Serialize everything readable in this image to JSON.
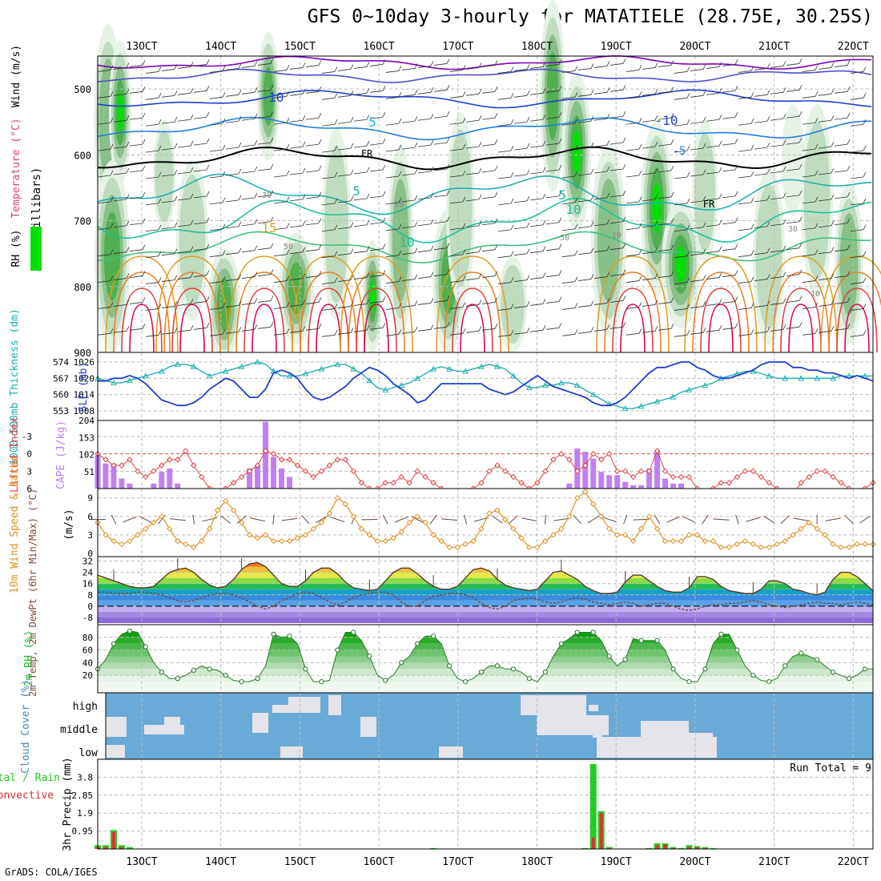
{
  "title": "GFS 0~10day 3-hourly for MATATIELE (28.75E, 30.25S)",
  "credit": "GrADS: COLA/IGES",
  "run_total": "Run Total = 9",
  "colors": {
    "rh_shades": [
      "#e6f2e6",
      "#c0dcc0",
      "#88c088",
      "#50b050",
      "#00e000"
    ],
    "temp_cold": "#7f00bf",
    "temp_cool": "#1f3fcf",
    "temp_freezing": "#000000",
    "temp_warm": "#e0a020",
    "temp_hot": "#e0004f",
    "slp": "#1f3fcf",
    "thickness": "#20b0b0",
    "cape": "#c07ff0",
    "lifted_index": "#e04040",
    "wind": "#e09020",
    "barbs": "#6a4a3a",
    "dewpt": "#7a4a3a",
    "rh2m": "#22bb22",
    "cloud_bg": "#6aaad6",
    "cloud_fill": "#e4e4ea",
    "precip_total": "#22cc22",
    "precip_conv": "#e03030"
  },
  "chart_data": [
    {
      "type": "heatmap",
      "panel": "upper-air",
      "ylabel": "(millibars)",
      "side_labels": [
        "RH (%)",
        "Temperature (°C)",
        "Wind (m/s)"
      ],
      "y_ticks": [
        "500",
        "600",
        "700",
        "800",
        "900"
      ],
      "ylim": [
        900,
        450
      ],
      "x_ticks": [
        "13OCT",
        "14OCT",
        "15OCT",
        "16OCT",
        "17OCT",
        "18OCT",
        "19OCT",
        "20OCT",
        "21OCT",
        "22OCT"
      ],
      "contour_labels": [
        "-10",
        "5",
        "-10",
        "FR",
        "FR",
        "5",
        "5",
        "10",
        "15",
        "10",
        "30",
        "10",
        "50",
        "-5",
        "10",
        "50",
        "10",
        "30"
      ]
    },
    {
      "type": "line",
      "panel": "slp-thickness",
      "ylabel_left": "1000-500mb Thickness (dm)",
      "ylabel_right": "SLP (mb)",
      "y_ticks_left": [
        "574",
        "567",
        "560",
        "553"
      ],
      "y_ticks_right": [
        "1026",
        "1020",
        "1014",
        "1008"
      ],
      "series": [
        {
          "name": "SLP (mb)",
          "values": [
            1019,
            1019,
            1020,
            1020,
            1021,
            1020,
            1018,
            1015,
            1012,
            1011,
            1010,
            1010,
            1011,
            1013,
            1016,
            1018,
            1020,
            1019,
            1016,
            1013,
            1013,
            1016,
            1022,
            1023,
            1022,
            1020,
            1016,
            1013,
            1012,
            1013,
            1015,
            1017,
            1020,
            1022,
            1024,
            1023,
            1021,
            1018,
            1016,
            1014,
            1011,
            1012,
            1015,
            1018,
            1018,
            1018,
            1018,
            1018,
            1018,
            1016,
            1015,
            1014,
            1015,
            1017,
            1019,
            1021,
            1019,
            1017,
            1016,
            1015,
            1014,
            1013,
            1011,
            1010,
            1010,
            1011,
            1013,
            1016,
            1019,
            1022,
            1024,
            1024,
            1025,
            1026,
            1026,
            1024,
            1023,
            1021,
            1020,
            1020,
            1021,
            1022,
            1023,
            1025,
            1026,
            1026,
            1026,
            1024,
            1024,
            1023,
            1023,
            1022,
            1022,
            1021,
            1020,
            1021,
            1020,
            1019
          ]
        },
        {
          "name": "Thickness (dm)",
          "values": [
            567,
            566,
            565,
            565,
            566,
            567,
            568,
            569,
            570,
            572,
            573,
            573,
            572,
            570,
            568,
            569,
            570,
            571,
            572,
            573,
            574,
            573,
            570,
            568,
            568,
            568,
            569,
            570,
            571,
            572,
            573,
            573,
            571,
            569,
            566,
            563,
            562,
            563,
            564,
            565,
            567,
            569,
            571,
            572,
            571,
            570,
            570,
            571,
            572,
            573,
            572,
            571,
            568,
            565,
            563,
            563,
            564,
            564,
            565,
            565,
            564,
            562,
            560,
            558,
            556,
            555,
            554,
            554,
            555,
            556,
            557,
            558,
            559,
            561,
            562,
            563,
            564,
            565,
            567,
            568,
            569,
            570,
            570,
            569,
            568,
            567,
            567,
            567,
            567,
            567,
            567,
            567,
            567,
            568,
            568,
            568,
            568,
            568
          ]
        }
      ]
    },
    {
      "type": "bar",
      "panel": "cape-li",
      "ylabel_left": "Lifted Index",
      "ylabel_right": "CAPE (J/kg)",
      "y_ticks_left": [
        "-3",
        "0",
        "3",
        "6"
      ],
      "y_ticks_right": [
        "204",
        "153",
        "102",
        "51"
      ],
      "series": [
        {
          "name": "CAPE (J/kg)",
          "values": [
            100,
            75,
            75,
            30,
            15,
            0,
            0,
            15,
            50,
            60,
            15,
            0,
            0,
            0,
            0,
            0,
            0,
            0,
            0,
            60,
            70,
            200,
            95,
            60,
            35,
            0,
            0,
            0,
            0,
            0,
            0,
            0,
            0,
            0,
            0,
            0,
            0,
            0,
            0,
            0,
            0,
            0,
            0,
            0,
            0,
            0,
            0,
            0,
            0,
            0,
            0,
            0,
            0,
            0,
            0,
            0,
            0,
            0,
            0,
            15,
            120,
            110,
            90,
            50,
            40,
            40,
            20,
            10,
            10,
            60,
            115,
            30,
            15,
            15,
            0,
            0,
            0,
            0,
            0,
            0,
            0,
            0,
            0,
            0,
            0,
            0,
            0,
            0,
            0,
            0,
            0,
            0,
            0,
            0,
            0,
            0,
            0,
            0
          ]
        },
        {
          "name": "Lifted Index",
          "values": [
            0,
            1,
            2,
            2,
            1,
            3,
            4,
            3,
            2,
            1,
            1,
            -0.5,
            2,
            4,
            6,
            7,
            6,
            5,
            4,
            3,
            2,
            -0.5,
            0,
            1,
            1,
            2,
            3,
            4,
            3,
            2,
            1,
            1,
            3,
            5,
            6,
            6,
            5,
            5,
            4,
            5,
            3,
            4,
            5,
            6,
            7,
            7,
            7,
            6,
            5,
            3,
            2,
            3,
            4,
            5,
            6,
            5,
            3,
            1,
            0,
            1,
            3,
            2,
            0,
            1,
            0,
            3,
            3,
            4,
            3,
            3,
            -0.5,
            3,
            4,
            4,
            4,
            6,
            7,
            6,
            5,
            5,
            4,
            3,
            3,
            4,
            5,
            6,
            7,
            7,
            5,
            4,
            3,
            3,
            4,
            5,
            6,
            7,
            6,
            5
          ]
        }
      ]
    },
    {
      "type": "line",
      "panel": "wind10m",
      "ylabel_left": "10m Wind Speed & Barbs",
      "ylabel_right": "(m/s)",
      "y_ticks": [
        "9",
        "6",
        "3",
        "0"
      ],
      "series": [
        {
          "name": "10m Wind Speed (m/s)",
          "values": [
            5,
            3,
            2,
            1.5,
            2,
            3,
            4,
            5,
            6,
            4,
            2,
            1.5,
            1,
            2,
            4,
            7,
            8.5,
            7,
            5,
            3,
            2.5,
            3,
            2,
            2,
            2,
            2.5,
            3,
            4,
            5,
            6.5,
            9,
            8,
            6,
            4,
            3,
            2,
            2,
            2.5,
            3.5,
            5,
            6,
            5,
            3,
            2,
            1,
            1,
            1.5,
            2,
            4,
            6.5,
            7,
            5.5,
            4,
            2.5,
            1,
            1,
            2,
            3,
            4,
            6,
            9,
            10,
            8,
            6,
            4,
            3,
            3,
            2,
            4,
            6,
            4,
            2,
            2,
            2,
            3,
            3,
            2,
            2,
            1,
            1,
            1.5,
            2,
            1.5,
            1,
            1,
            1.5,
            2,
            3,
            4,
            5,
            4,
            3,
            1.5,
            1,
            1,
            1.5,
            1.5,
            1.5
          ]
        }
      ]
    },
    {
      "type": "area",
      "panel": "temp-dewpt",
      "ylabel": "2m Temp, 2m DewPt (6hr Min/Max) (°C)",
      "y_ticks": [
        "32",
        "24",
        "16",
        "8",
        "0",
        "-8"
      ],
      "series": [
        {
          "name": "2m Temp (°C)",
          "values": [
            22,
            20,
            18,
            16,
            14,
            13,
            13,
            14,
            19,
            24,
            26,
            27,
            24,
            19,
            15,
            13,
            14,
            19,
            26,
            30,
            31,
            28,
            22,
            16,
            14,
            14,
            18,
            24,
            27,
            27,
            23,
            17,
            13,
            12,
            11,
            12,
            18,
            24,
            27,
            27,
            23,
            18,
            14,
            12,
            12,
            14,
            20,
            26,
            27,
            25,
            19,
            15,
            13,
            12,
            11,
            12,
            18,
            24,
            25,
            22,
            19,
            14,
            11,
            9,
            9,
            10,
            17,
            22,
            22,
            18,
            14,
            11,
            10,
            10,
            13,
            21,
            21,
            19,
            14,
            11,
            10,
            9,
            9,
            12,
            18,
            18,
            16,
            12,
            11,
            9,
            8,
            10,
            19,
            24,
            24,
            21,
            16,
            11
          ]
        },
        {
          "name": "2m DewPt (°C)",
          "values": [
            10,
            10,
            9,
            9,
            9,
            10,
            10,
            9,
            8,
            6,
            4,
            3,
            4,
            6,
            8,
            9,
            9,
            8,
            6,
            3,
            0,
            -2,
            0,
            4,
            6,
            9,
            10,
            9,
            6,
            3,
            1,
            3,
            6,
            8,
            9,
            10,
            10,
            8,
            3,
            0,
            0,
            4,
            7,
            8,
            9,
            9,
            8,
            6,
            2,
            -1,
            -2,
            0,
            4,
            5,
            6,
            5,
            3,
            2,
            3,
            5,
            6,
            5,
            3,
            2,
            1,
            2,
            3,
            2,
            0,
            1,
            2,
            2,
            0,
            -2,
            -3,
            -2,
            0,
            1,
            1,
            2,
            2,
            3,
            4,
            3,
            1,
            0,
            -1,
            0,
            1,
            2,
            3,
            2,
            2,
            1,
            2,
            3,
            2,
            1
          ]
        }
      ]
    },
    {
      "type": "area",
      "panel": "rh2m",
      "ylabel": "2m RH (%)",
      "y_ticks": [
        "80",
        "60",
        "40",
        "20"
      ],
      "series": [
        {
          "name": "2m RH (%)",
          "values": [
            30,
            45,
            70,
            85,
            90,
            88,
            65,
            40,
            25,
            15,
            15,
            20,
            28,
            35,
            30,
            28,
            20,
            12,
            10,
            10,
            15,
            35,
            85,
            80,
            82,
            70,
            30,
            10,
            10,
            12,
            60,
            88,
            88,
            75,
            50,
            20,
            12,
            20,
            40,
            50,
            70,
            82,
            82,
            70,
            35,
            15,
            10,
            15,
            25,
            35,
            35,
            30,
            30,
            25,
            15,
            10,
            25,
            50,
            70,
            78,
            88,
            88,
            88,
            75,
            50,
            35,
            45,
            78,
            75,
            75,
            75,
            60,
            30,
            15,
            10,
            10,
            30,
            70,
            85,
            85,
            60,
            35,
            20,
            12,
            10,
            15,
            35,
            50,
            55,
            50,
            45,
            35,
            25,
            20,
            15,
            20,
            30,
            30
          ]
        }
      ]
    },
    {
      "type": "heatmap",
      "panel": "cloud-cover",
      "ylabel": "Cloud Cover (%)",
      "y_ticks": [
        "high",
        "middle",
        "low"
      ]
    },
    {
      "type": "bar",
      "panel": "precip",
      "ylabel": "3hr Precip (mm)",
      "side_labels": [
        "Total / Rain",
        "Convective"
      ],
      "y_ticks": [
        "3.8",
        "2.85",
        "1.9",
        "0.95"
      ],
      "ylim": [
        0,
        4.75
      ],
      "series": [
        {
          "name": "Total / Rain",
          "values": [
            0.2,
            0.2,
            1.0,
            0.2,
            0.1,
            0,
            0,
            0,
            0,
            0,
            0,
            0,
            0,
            0,
            0,
            0,
            0,
            0,
            0,
            0,
            0,
            0,
            0,
            0,
            0,
            0,
            0,
            0,
            0,
            0,
            0,
            0,
            0,
            0,
            0,
            0,
            0,
            0,
            0,
            0,
            0,
            0,
            0.05,
            0,
            0,
            0,
            0,
            0,
            0,
            0,
            0,
            0,
            0,
            0,
            0,
            0,
            0,
            0,
            0,
            0,
            0,
            0.05,
            4.5,
            2.0,
            0.1,
            0,
            0,
            0,
            0,
            0.05,
            0.3,
            0.3,
            0.1,
            0.05,
            0.2,
            0.15,
            0.1,
            0.05,
            0,
            0,
            0,
            0,
            0,
            0,
            0,
            0,
            0,
            0,
            0,
            0,
            0,
            0,
            0,
            0,
            0,
            0,
            0,
            0
          ]
        },
        {
          "name": "Convective",
          "values": [
            0.1,
            0.1,
            0.9,
            0.1,
            0,
            0,
            0,
            0,
            0,
            0,
            0,
            0,
            0,
            0,
            0,
            0,
            0,
            0,
            0,
            0,
            0,
            0,
            0,
            0,
            0,
            0,
            0,
            0,
            0,
            0,
            0,
            0,
            0,
            0,
            0,
            0,
            0,
            0,
            0,
            0,
            0,
            0,
            0.02,
            0,
            0,
            0,
            0,
            0,
            0,
            0,
            0,
            0,
            0,
            0,
            0,
            0,
            0,
            0,
            0,
            0,
            0,
            0,
            0.6,
            1.9,
            0.05,
            0,
            0,
            0,
            0,
            0,
            0.2,
            0.25,
            0.05,
            0,
            0.1,
            0.1,
            0.05,
            0,
            0,
            0,
            0,
            0,
            0,
            0,
            0,
            0,
            0,
            0,
            0,
            0,
            0,
            0,
            0,
            0,
            0,
            0,
            0,
            0
          ]
        }
      ]
    }
  ]
}
